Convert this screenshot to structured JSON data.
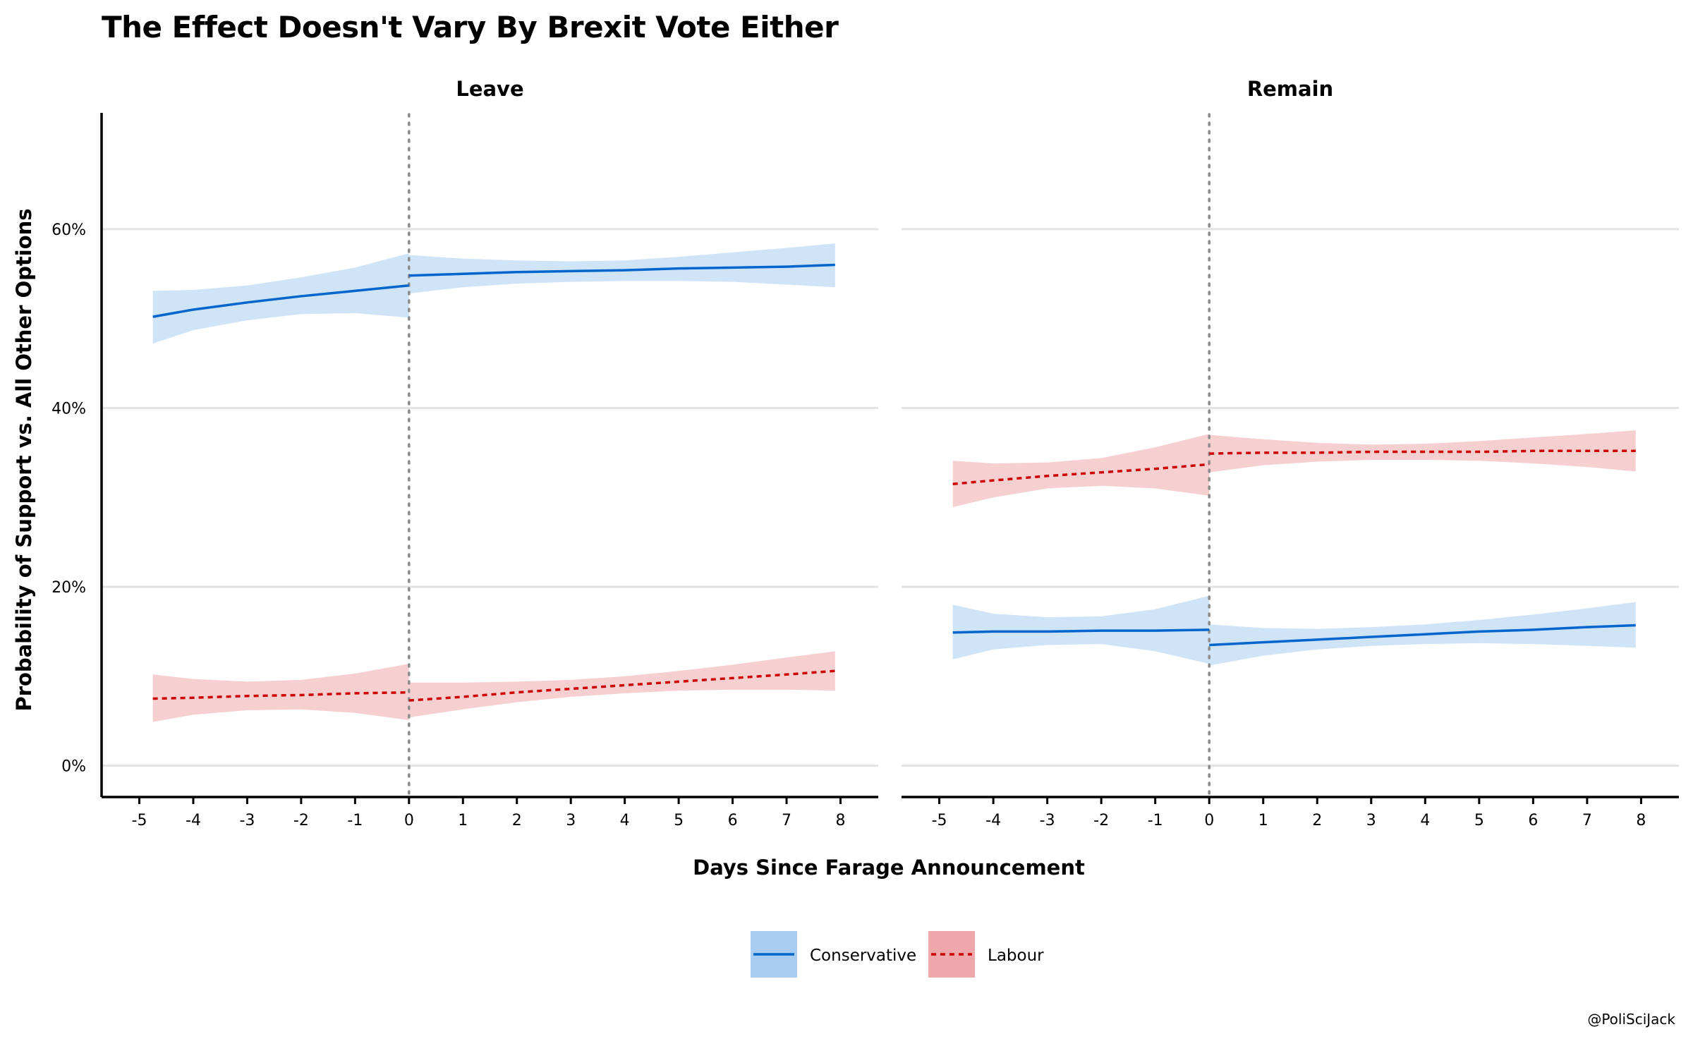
{
  "chart_data": {
    "type": "line",
    "title": "The Effect Doesn't Vary By Brexit Vote Either",
    "xlabel": "Days Since Farage Announcement",
    "ylabel": "Probability of Support vs. All Other Options",
    "xlim": [
      -5.7,
      8.7
    ],
    "ylim": [
      -3.5,
      73
    ],
    "x_ticks": [
      -5,
      -4,
      -3,
      -2,
      -1,
      0,
      1,
      2,
      3,
      4,
      5,
      6,
      7,
      8
    ],
    "y_ticks": [
      0,
      20,
      40,
      60
    ],
    "y_tick_labels": [
      "0%",
      "20%",
      "40%",
      "60%"
    ],
    "cutoff_x": 0,
    "legend": {
      "position": "bottom",
      "items": [
        {
          "name": "Conservative",
          "color": "#0066cc",
          "fill": "#a9cdf0",
          "dash": "solid"
        },
        {
          "name": "Labour",
          "color": "#cc0000",
          "fill": "#eea7ab",
          "dash": "dotted"
        }
      ]
    },
    "facets": [
      {
        "label": "Leave",
        "series": [
          {
            "name": "Conservative",
            "segments": [
              {
                "x": [
                  -4.75,
                  -4,
                  -3,
                  -2,
                  -1,
                  0
                ],
                "y": [
                  50.2,
                  51.0,
                  51.8,
                  52.5,
                  53.1,
                  53.7
                ],
                "lower": [
                  47.2,
                  48.7,
                  49.8,
                  50.5,
                  50.6,
                  50.1
                ],
                "upper": [
                  53.1,
                  53.2,
                  53.7,
                  54.6,
                  55.7,
                  57.3
                ]
              },
              {
                "x": [
                  0,
                  1,
                  2,
                  3,
                  4,
                  5,
                  6,
                  7,
                  7.9
                ],
                "y": [
                  54.8,
                  55.0,
                  55.2,
                  55.3,
                  55.4,
                  55.6,
                  55.7,
                  55.8,
                  56.0
                ],
                "lower": [
                  52.8,
                  53.5,
                  53.9,
                  54.1,
                  54.2,
                  54.2,
                  54.1,
                  53.8,
                  53.5
                ],
                "upper": [
                  57.1,
                  56.7,
                  56.5,
                  56.4,
                  56.5,
                  56.9,
                  57.4,
                  57.9,
                  58.4
                ]
              }
            ]
          },
          {
            "name": "Labour",
            "segments": [
              {
                "x": [
                  -4.75,
                  -4,
                  -3,
                  -2,
                  -1,
                  0
                ],
                "y": [
                  7.5,
                  7.6,
                  7.8,
                  7.9,
                  8.1,
                  8.2
                ],
                "lower": [
                  4.9,
                  5.7,
                  6.2,
                  6.3,
                  5.9,
                  5.1
                ],
                "upper": [
                  10.2,
                  9.7,
                  9.4,
                  9.6,
                  10.3,
                  11.4
                ]
              },
              {
                "x": [
                  0,
                  1,
                  2,
                  3,
                  4,
                  5,
                  6,
                  7,
                  7.9
                ],
                "y": [
                  7.3,
                  7.7,
                  8.2,
                  8.6,
                  9.0,
                  9.4,
                  9.8,
                  10.2,
                  10.6
                ],
                "lower": [
                  5.4,
                  6.3,
                  7.1,
                  7.7,
                  8.1,
                  8.4,
                  8.5,
                  8.5,
                  8.4
                ],
                "upper": [
                  9.3,
                  9.3,
                  9.4,
                  9.6,
                  10.0,
                  10.6,
                  11.3,
                  12.1,
                  12.8
                ]
              }
            ]
          }
        ]
      },
      {
        "label": "Remain",
        "series": [
          {
            "name": "Conservative",
            "segments": [
              {
                "x": [
                  -4.75,
                  -4,
                  -3,
                  -2,
                  -1,
                  0
                ],
                "y": [
                  14.9,
                  15.0,
                  15.0,
                  15.1,
                  15.1,
                  15.2
                ],
                "lower": [
                  11.9,
                  13.0,
                  13.5,
                  13.6,
                  12.8,
                  11.4
                ],
                "upper": [
                  18.0,
                  17.0,
                  16.6,
                  16.7,
                  17.5,
                  19.0
                ]
              },
              {
                "x": [
                  0,
                  1,
                  2,
                  3,
                  4,
                  5,
                  6,
                  7,
                  7.9
                ],
                "y": [
                  13.5,
                  13.8,
                  14.1,
                  14.4,
                  14.7,
                  15.0,
                  15.2,
                  15.5,
                  15.7
                ],
                "lower": [
                  11.2,
                  12.3,
                  13.0,
                  13.4,
                  13.6,
                  13.7,
                  13.6,
                  13.4,
                  13.2
                ],
                "upper": [
                  15.8,
                  15.4,
                  15.3,
                  15.5,
                  15.8,
                  16.3,
                  16.9,
                  17.6,
                  18.3
                ]
              }
            ]
          },
          {
            "name": "Labour",
            "segments": [
              {
                "x": [
                  -4.75,
                  -4,
                  -3,
                  -2,
                  -1,
                  0
                ],
                "y": [
                  31.5,
                  31.9,
                  32.4,
                  32.8,
                  33.2,
                  33.7
                ],
                "lower": [
                  28.9,
                  30.0,
                  31.0,
                  31.3,
                  31.0,
                  30.2
                ],
                "upper": [
                  34.1,
                  33.8,
                  33.9,
                  34.4,
                  35.6,
                  37.1
                ]
              },
              {
                "x": [
                  0,
                  1,
                  2,
                  3,
                  4,
                  5,
                  6,
                  7,
                  7.9
                ],
                "y": [
                  34.9,
                  35.0,
                  35.0,
                  35.1,
                  35.1,
                  35.1,
                  35.2,
                  35.2,
                  35.2
                ],
                "lower": [
                  32.8,
                  33.6,
                  34.0,
                  34.2,
                  34.2,
                  34.1,
                  33.8,
                  33.4,
                  32.9
                ],
                "upper": [
                  37.0,
                  36.5,
                  36.1,
                  35.9,
                  36.0,
                  36.3,
                  36.7,
                  37.1,
                  37.5
                ]
              }
            ]
          }
        ]
      }
    ]
  },
  "credit": "@PoliSciJack"
}
